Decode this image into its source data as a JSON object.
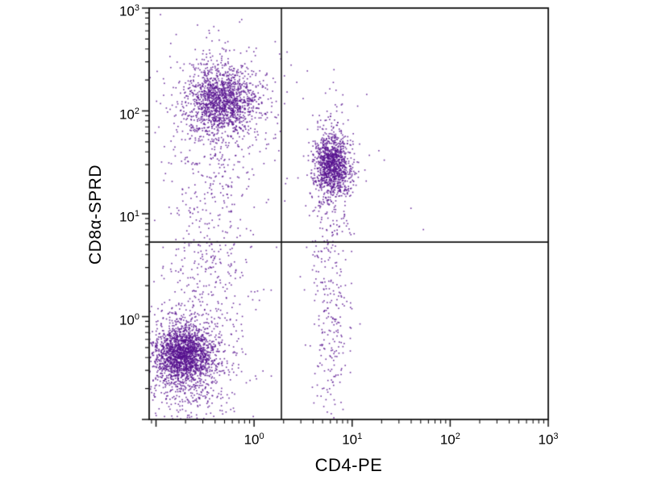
{
  "chart_data": {
    "type": "scatter",
    "title": "",
    "xlabel": "CD4-PE",
    "ylabel": "CD8α-SPRD",
    "x_scale": "log",
    "y_scale": "log",
    "xlim_log10": [
      -1.07,
      3
    ],
    "ylim_log10": [
      -1.0,
      3
    ],
    "grid": false,
    "legend": "none",
    "point_color": "#56108e",
    "axis_color": "#111111",
    "x_ticks": [
      {
        "base": "10",
        "exp": "0",
        "value": 1
      },
      {
        "base": "10",
        "exp": "1",
        "value": 10
      },
      {
        "base": "10",
        "exp": "2",
        "value": 100
      },
      {
        "base": "10",
        "exp": "3",
        "value": 1000
      }
    ],
    "y_ticks": [
      {
        "base": "10",
        "exp": "0",
        "value": 1
      },
      {
        "base": "10",
        "exp": "1",
        "value": 10
      },
      {
        "base": "10",
        "exp": "2",
        "value": 100
      },
      {
        "base": "10",
        "exp": "3",
        "value": 1000
      }
    ],
    "quadrant_gate": {
      "x": 1.9,
      "y": 5.3
    },
    "seed": 42,
    "populations": [
      {
        "name": "CD4- CD8+ core (upper left)",
        "center_log10": [
          -0.33,
          2.1
        ],
        "sigma_log10": [
          0.17,
          0.16
        ],
        "count": 1200
      },
      {
        "name": "CD4- CD8+ halo",
        "center_log10": [
          -0.33,
          2.05
        ],
        "sigma_log10": [
          0.3,
          0.33
        ],
        "count": 400
      },
      {
        "name": "left column scatter",
        "center_log10": [
          -0.45,
          0.7
        ],
        "sigma_log10": [
          0.22,
          0.95
        ],
        "count": 600
      },
      {
        "name": "CD4- CD8- core (lower left)",
        "center_log10": [
          -0.72,
          -0.37
        ],
        "sigma_log10": [
          0.15,
          0.13
        ],
        "count": 1600
      },
      {
        "name": "CD4- CD8- halo",
        "center_log10": [
          -0.7,
          -0.45
        ],
        "sigma_log10": [
          0.22,
          0.32
        ],
        "count": 700
      },
      {
        "name": "CD4+ CD8- core (right)",
        "center_log10": [
          0.8,
          1.47
        ],
        "sigma_log10": [
          0.09,
          0.15
        ],
        "count": 900
      },
      {
        "name": "CD4+ CD8- halo",
        "center_log10": [
          0.8,
          1.42
        ],
        "sigma_log10": [
          0.12,
          0.32
        ],
        "count": 350
      },
      {
        "name": "right column scatter",
        "center_log10": [
          0.78,
          0.0
        ],
        "sigma_log10": [
          0.09,
          0.6
        ],
        "count": 260
      },
      {
        "name": "sparse background",
        "center_log10": [
          0.1,
          1.6
        ],
        "sigma_log10": [
          0.6,
          0.55
        ],
        "count": 30
      }
    ]
  }
}
